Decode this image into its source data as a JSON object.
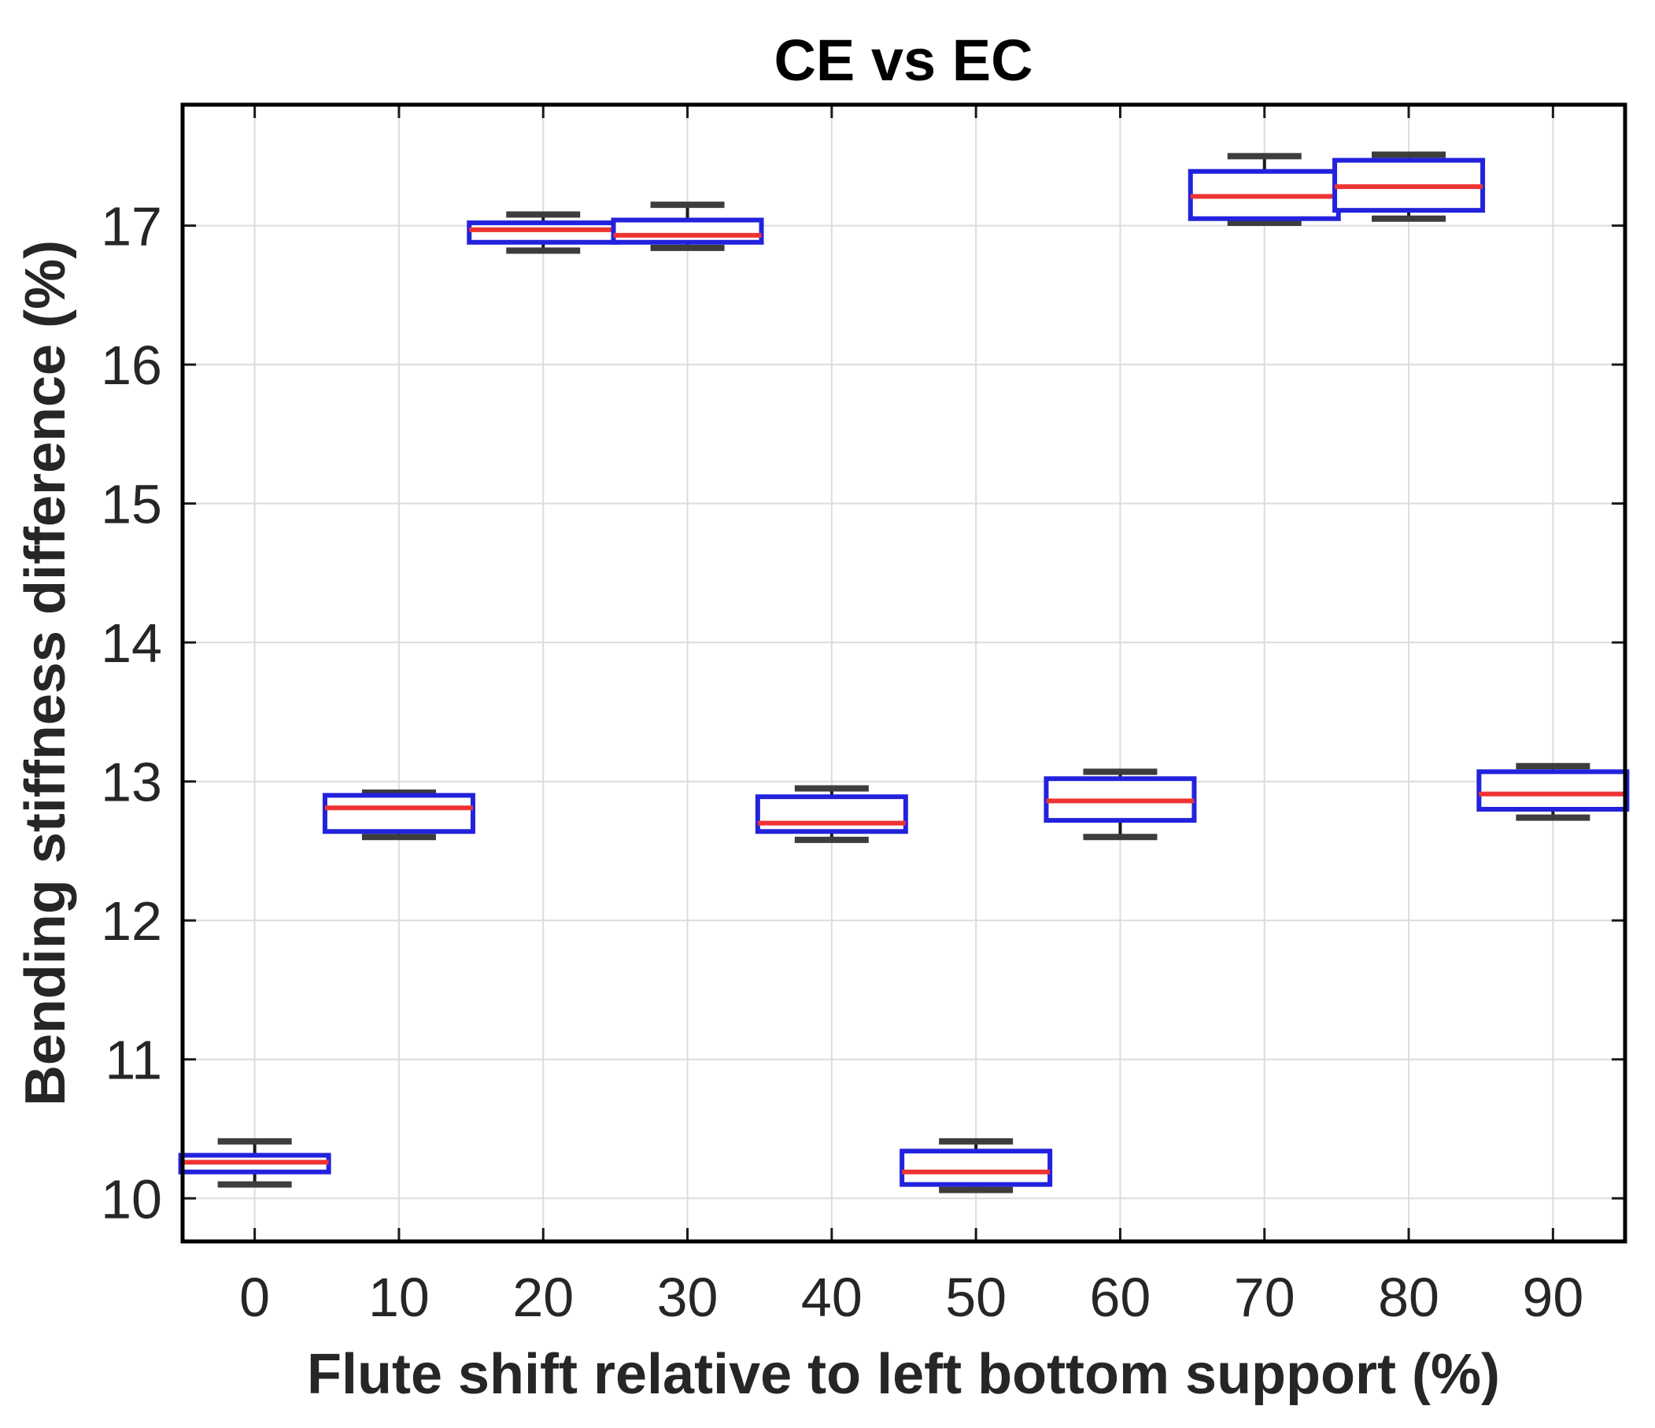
{
  "window": {
    "background": "#ffffff"
  },
  "chart_data": {
    "type": "boxplot",
    "title": "CE vs EC",
    "xlabel": "Flute shift relative to left bottom support (%)",
    "ylabel": "Bending stiffness difference (%)",
    "categories": [
      "0",
      "10",
      "20",
      "30",
      "40",
      "50",
      "60",
      "70",
      "80",
      "90"
    ],
    "x_ticks": [
      "0",
      "10",
      "20",
      "30",
      "40",
      "50",
      "60",
      "70",
      "80",
      "90"
    ],
    "y_ticks": [
      10,
      11,
      12,
      13,
      14,
      15,
      16,
      17
    ],
    "ylim": [
      9.69,
      17.87
    ],
    "grid": true,
    "legend": "none",
    "series": [
      {
        "category": "0",
        "whisker_low": 10.1,
        "q1": 10.19,
        "median": 10.26,
        "q3": 10.31,
        "whisker_high": 10.41
      },
      {
        "category": "10",
        "whisker_low": 12.6,
        "q1": 12.64,
        "median": 12.81,
        "q3": 12.9,
        "whisker_high": 12.92
      },
      {
        "category": "20",
        "whisker_low": 16.82,
        "q1": 16.88,
        "median": 16.97,
        "q3": 17.02,
        "whisker_high": 17.08
      },
      {
        "category": "30",
        "whisker_low": 16.84,
        "q1": 16.88,
        "median": 16.93,
        "q3": 17.04,
        "whisker_high": 17.15
      },
      {
        "category": "40",
        "whisker_low": 12.58,
        "q1": 12.64,
        "median": 12.7,
        "q3": 12.89,
        "whisker_high": 12.95
      },
      {
        "category": "50",
        "whisker_low": 10.06,
        "q1": 10.1,
        "median": 10.19,
        "q3": 10.34,
        "whisker_high": 10.41
      },
      {
        "category": "60",
        "whisker_low": 12.6,
        "q1": 12.72,
        "median": 12.86,
        "q3": 13.02,
        "whisker_high": 13.07
      },
      {
        "category": "70",
        "whisker_low": 17.02,
        "q1": 17.05,
        "median": 17.21,
        "q3": 17.39,
        "whisker_high": 17.5
      },
      {
        "category": "80",
        "whisker_low": 17.05,
        "q1": 17.11,
        "median": 17.28,
        "q3": 17.47,
        "whisker_high": 17.51
      },
      {
        "category": "90",
        "whisker_low": 12.74,
        "q1": 12.8,
        "median": 12.91,
        "q3": 13.07,
        "whisker_high": 13.11
      }
    ],
    "colors": {
      "box_edge": "#2222dd",
      "box_fill": "#ffffff",
      "median": "#ee3333",
      "whisker": "#1a1a1a",
      "whisker_cap": "#3d3d3d",
      "grid": "#dcdcdc",
      "frame": "#000000",
      "tick": "#1a1a1a",
      "text": "#262626",
      "background": "#ffffff"
    }
  }
}
